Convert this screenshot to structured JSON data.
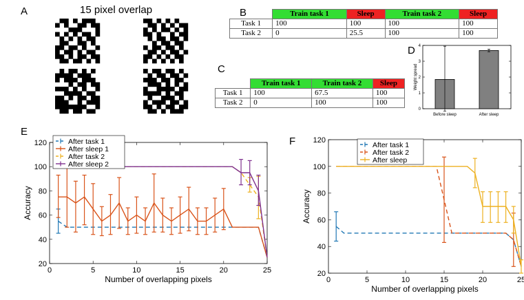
{
  "panels": {
    "A": {
      "letter": "A",
      "title": "15 pixel overlap",
      "patterns": [
        [
          "0110101110",
          "1010011011",
          "0001110001",
          "1010101101",
          "0101010110",
          "0110011010",
          "1101101001",
          "1011010110",
          "1101011011",
          "0110110101"
        ],
        [
          "1101010100",
          "0110101011",
          "1010110101",
          "1101001011",
          "0101101101",
          "0010110110",
          "1011011010",
          "0110101101",
          "1101010110",
          "1010101010"
        ],
        [
          "0101101010",
          "1111011100",
          "1011101110",
          "0001011011",
          "1110101001",
          "0011110110",
          "1101011011",
          "1110010111",
          "1111111001",
          "0110110110"
        ],
        [
          "1011011010",
          "0101101101",
          "1110110110",
          "0111010101",
          "1001111011",
          "1111010110",
          "0100111010",
          "1011101101",
          "1101011011",
          "0110101110"
        ]
      ]
    },
    "B": {
      "letter": "B",
      "header": [
        {
          "label": "Train task 1",
          "kind": "train"
        },
        {
          "label": "Sleep",
          "kind": "sleep"
        },
        {
          "label": "Train task 2",
          "kind": "train"
        },
        {
          "label": "Sleep",
          "kind": "sleep"
        }
      ],
      "rows": [
        {
          "label": "Task 1",
          "cells": [
            "100",
            "100",
            "100",
            "100"
          ]
        },
        {
          "label": "Task 2",
          "cells": [
            "0",
            "25.5",
            "100",
            "100"
          ]
        }
      ]
    },
    "C": {
      "letter": "C",
      "header": [
        {
          "label": "Train task 1",
          "kind": "train"
        },
        {
          "label": "Train task 2",
          "kind": "train"
        },
        {
          "label": "Sleep",
          "kind": "sleep"
        }
      ],
      "rows": [
        {
          "label": "Task 1",
          "cells": [
            "100",
            "67.5",
            "100"
          ]
        },
        {
          "label": "Task 2",
          "cells": [
            "0",
            "100",
            "100"
          ]
        }
      ]
    },
    "D": {
      "letter": "D"
    },
    "E": {
      "letter": "E"
    },
    "F": {
      "letter": "F"
    }
  },
  "chart_data": [
    {
      "id": "D",
      "type": "bar",
      "categories": [
        "Before sleep",
        "After sleep"
      ],
      "values": [
        1.85,
        3.68
      ],
      "errors": [
        [
          -0.15,
          3.95
        ],
        [
          3.6,
          3.76
        ]
      ],
      "ylabel": "Weight spread",
      "ylim": [
        0,
        4
      ],
      "yticks": [
        0,
        1,
        2,
        3,
        4
      ],
      "bar_color": "#808080"
    },
    {
      "id": "E",
      "type": "line",
      "xlabel": "Number of overlapping pixels",
      "ylabel": "Accuracy",
      "xlim": [
        0,
        25
      ],
      "ylim": [
        20,
        120
      ],
      "xticks": [
        0,
        5,
        10,
        15,
        20,
        25
      ],
      "yticks": [
        20,
        40,
        60,
        80,
        100,
        120
      ],
      "series": [
        {
          "name": "After task 1",
          "color": "#1f77b4",
          "dash": "6,4",
          "points": [
            [
              1,
              55
            ],
            [
              2,
              50
            ],
            [
              3,
              50
            ],
            [
              4,
              50
            ],
            [
              5,
              50
            ],
            [
              6,
              50
            ],
            [
              7,
              50
            ],
            [
              8,
              50
            ],
            [
              9,
              50
            ],
            [
              10,
              50
            ],
            [
              11,
              50
            ],
            [
              12,
              50
            ],
            [
              13,
              50
            ],
            [
              14,
              50
            ],
            [
              15,
              50
            ],
            [
              16,
              50
            ],
            [
              17,
              50
            ],
            [
              18,
              50
            ],
            [
              19,
              50
            ],
            [
              20,
              50
            ],
            [
              21,
              50
            ],
            [
              22,
              50
            ],
            [
              23,
              50
            ],
            [
              24,
              50
            ],
            [
              25,
              25
            ]
          ],
          "errorbars": [
            [
              1,
              45,
              65
            ]
          ]
        },
        {
          "name": "After sleep 1",
          "color": "#d95319",
          "dash": "",
          "points": [
            [
              1,
              75
            ],
            [
              2,
              75
            ],
            [
              3,
              70
            ],
            [
              4,
              75
            ],
            [
              5,
              65
            ],
            [
              6,
              55
            ],
            [
              7,
              60
            ],
            [
              8,
              70
            ],
            [
              9,
              55
            ],
            [
              10,
              60
            ],
            [
              11,
              55
            ],
            [
              12,
              70
            ],
            [
              13,
              60
            ],
            [
              14,
              55
            ],
            [
              15,
              60
            ],
            [
              16,
              65
            ],
            [
              17,
              55
            ],
            [
              18,
              55
            ],
            [
              19,
              60
            ],
            [
              20,
              65
            ],
            [
              21,
              50
            ],
            [
              22,
              50
            ],
            [
              23,
              50
            ],
            [
              24,
              50
            ],
            [
              25,
              25
            ]
          ],
          "errorbars": [
            [
              1,
              58,
              93
            ],
            [
              2,
              50,
              100
            ],
            [
              3,
              46,
              88
            ],
            [
              4,
              52,
              93
            ],
            [
              5,
              44,
              86
            ],
            [
              6,
              43,
              67
            ],
            [
              7,
              44,
              77
            ],
            [
              8,
              49,
              91
            ],
            [
              9,
              44,
              66
            ],
            [
              10,
              45,
              75
            ],
            [
              11,
              44,
              66
            ],
            [
              12,
              46,
              94
            ],
            [
              13,
              46,
              74
            ],
            [
              14,
              44,
              66
            ],
            [
              15,
              45,
              75
            ],
            [
              16,
              47,
              83
            ],
            [
              17,
              44,
              66
            ],
            [
              18,
              44,
              66
            ],
            [
              19,
              46,
              74
            ],
            [
              20,
              48,
              82
            ]
          ]
        },
        {
          "name": "After task 2",
          "color": "#edb120",
          "dash": "6,4",
          "points": [
            [
              1,
              100
            ],
            [
              5,
              100
            ],
            [
              10,
              100
            ],
            [
              15,
              100
            ],
            [
              20,
              100
            ],
            [
              21,
              100
            ],
            [
              22,
              95
            ],
            [
              23,
              85
            ],
            [
              24,
              75
            ],
            [
              25,
              25
            ]
          ],
          "errorbars": [
            [
              23,
              79,
              91
            ],
            [
              24,
              57,
              92
            ]
          ]
        },
        {
          "name": "After sleep 2",
          "color": "#7e2f8e",
          "dash": "",
          "points": [
            [
              1,
              100
            ],
            [
              5,
              100
            ],
            [
              10,
              100
            ],
            [
              15,
              100
            ],
            [
              20,
              100
            ],
            [
              21,
              100
            ],
            [
              22,
              95
            ],
            [
              23,
              95
            ],
            [
              24,
              80
            ],
            [
              25,
              25
            ]
          ],
          "errorbars": [
            [
              22,
              85,
              106
            ],
            [
              23,
              85,
              105
            ],
            [
              24,
              68,
              93
            ]
          ]
        }
      ]
    },
    {
      "id": "F",
      "type": "line",
      "xlabel": "Number of overlapping pixels",
      "ylabel": "Accuracy",
      "xlim": [
        0,
        25
      ],
      "ylim": [
        20,
        120
      ],
      "xticks": [
        0,
        5,
        10,
        15,
        20,
        25
      ],
      "yticks": [
        20,
        40,
        60,
        80,
        100,
        120
      ],
      "series": [
        {
          "name": "After task 1",
          "color": "#1f77b4",
          "dash": "6,4",
          "points": [
            [
              1,
              55
            ],
            [
              2,
              50
            ],
            [
              5,
              50
            ],
            [
              10,
              50
            ],
            [
              15,
              50
            ],
            [
              20,
              50
            ],
            [
              23,
              50
            ],
            [
              24,
              45
            ],
            [
              25,
              25
            ]
          ],
          "errorbars": [
            [
              1,
              44,
              66
            ]
          ]
        },
        {
          "name": "After task 2",
          "color": "#d95319",
          "dash": "6,4",
          "points": [
            [
              1,
              100
            ],
            [
              5,
              100
            ],
            [
              10,
              100
            ],
            [
              14,
              100
            ],
            [
              15,
              75
            ],
            [
              16,
              50
            ],
            [
              17,
              50
            ],
            [
              20,
              50
            ],
            [
              23,
              50
            ],
            [
              24,
              45
            ],
            [
              25,
              25
            ]
          ],
          "errorbars": [
            [
              15,
              43,
              107
            ],
            [
              24,
              25,
              65
            ]
          ]
        },
        {
          "name": "After sleep",
          "color": "#edb120",
          "dash": "",
          "points": [
            [
              1,
              100
            ],
            [
              5,
              100
            ],
            [
              10,
              100
            ],
            [
              15,
              100
            ],
            [
              18,
              100
            ],
            [
              19,
              95
            ],
            [
              20,
              70
            ],
            [
              21,
              70
            ],
            [
              22,
              70
            ],
            [
              23,
              70
            ],
            [
              24,
              60
            ],
            [
              25,
              25
            ]
          ],
          "errorbars": [
            [
              19,
              84,
              106
            ],
            [
              20,
              58,
              81
            ],
            [
              21,
              58,
              81
            ],
            [
              22,
              58,
              81
            ],
            [
              23,
              58,
              81
            ],
            [
              24,
              50,
              70
            ],
            [
              25,
              20,
              30
            ]
          ]
        }
      ]
    }
  ]
}
